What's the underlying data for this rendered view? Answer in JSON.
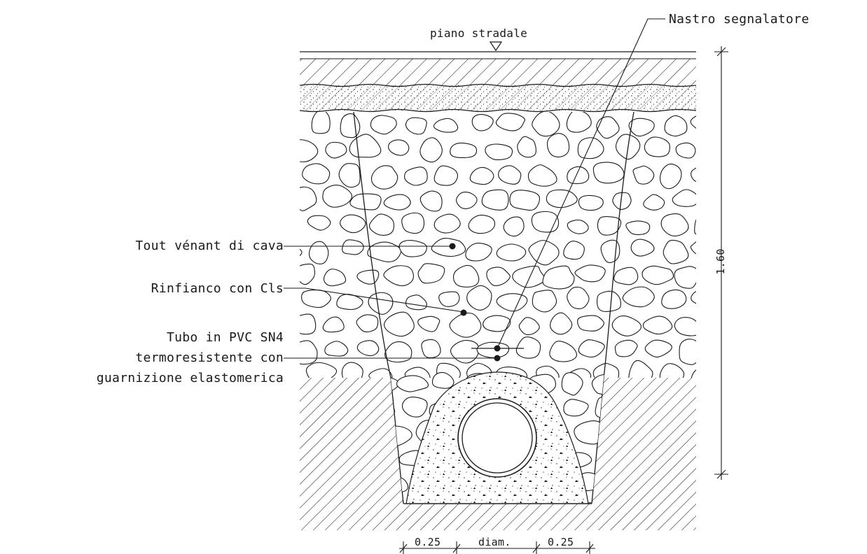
{
  "labels": {
    "road_surface": "piano stradale",
    "warning_tape": "Nastro segnalatore",
    "fill": "Tout vénant di cava",
    "concrete_haunch": "Rinfianco con Cls",
    "pipe_line1": "Tubo in PVC SN4",
    "pipe_line2": "termoresistente con",
    "pipe_line3": "guarnizione elastomerica"
  },
  "dimensions": {
    "depth": "1.60",
    "left_clearance": "0.25",
    "diameter": "diam.",
    "right_clearance": "0.25"
  },
  "colors": {
    "line": "#1a1a1a",
    "background": "#ffffff"
  }
}
